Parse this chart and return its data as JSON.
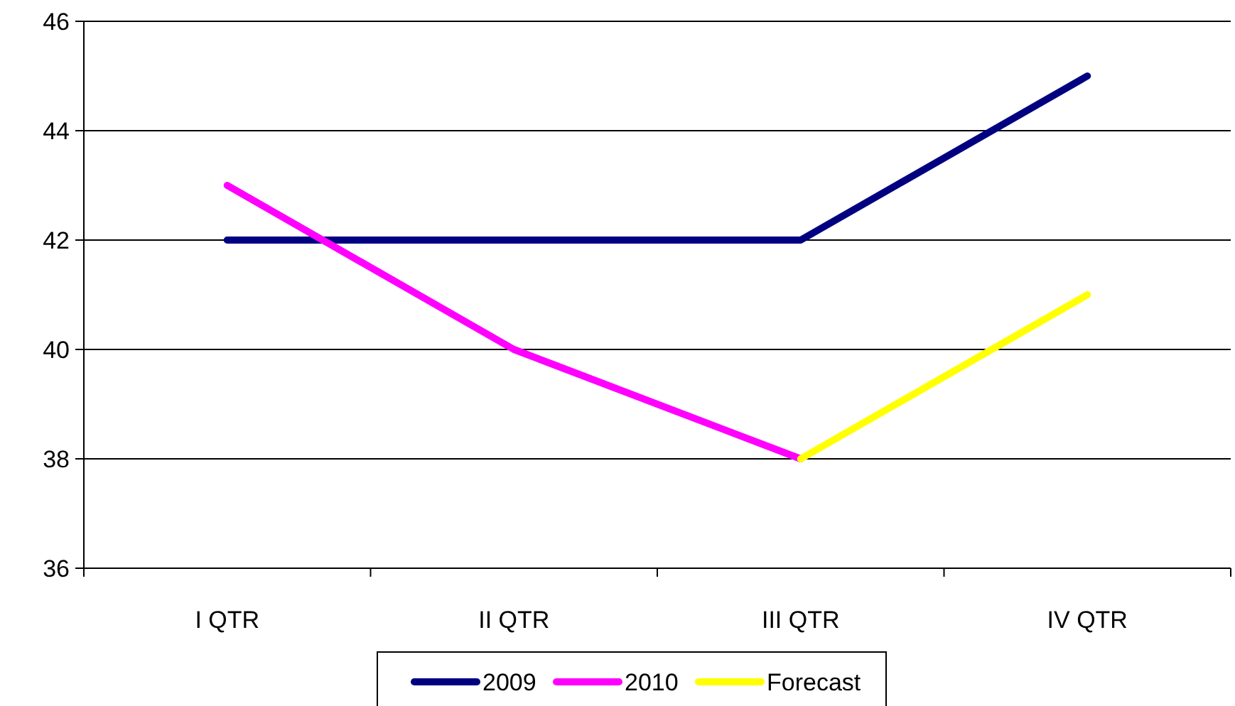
{
  "chart_data": {
    "type": "line",
    "categories": [
      "I QTR",
      "II QTR",
      "III QTR",
      "IV QTR"
    ],
    "series": [
      {
        "name": "2009",
        "color": "#000080",
        "values": [
          42,
          42,
          42,
          45
        ]
      },
      {
        "name": "2010",
        "color": "#ff00ff",
        "values": [
          43,
          40,
          38,
          null
        ]
      },
      {
        "name": "Forecast",
        "color": "#ffff00",
        "values": [
          null,
          null,
          38,
          41
        ]
      }
    ],
    "ylim": [
      36,
      46
    ],
    "yticks": [
      36,
      38,
      40,
      42,
      44,
      46
    ],
    "grid": "y",
    "legend": "bottom",
    "marker": "none",
    "line_style": "solid"
  }
}
